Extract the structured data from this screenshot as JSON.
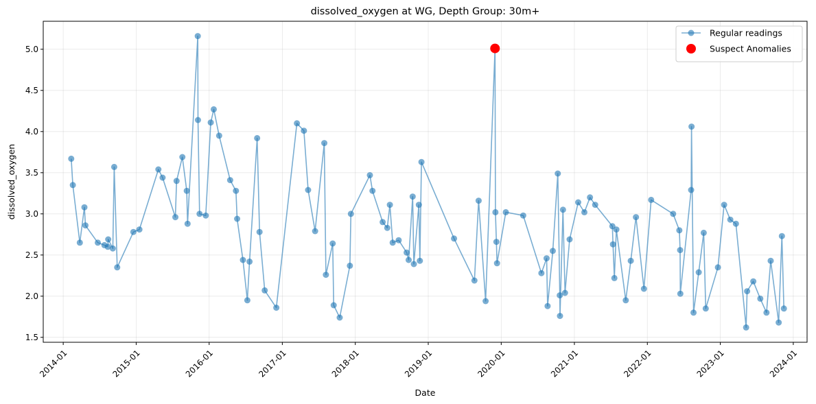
{
  "chart_data": {
    "type": "line",
    "title": "dissolved_oxygen at WG, Depth Group: 30m+",
    "xlabel": "Date",
    "ylabel": "dissolved_oxygen",
    "xlim": [
      "2013-09-23",
      "2024-03-10"
    ],
    "ylim": [
      1.44,
      5.34
    ],
    "x_ticks": [
      "2014-01-01",
      "2015-01-01",
      "2016-01-01",
      "2017-01-01",
      "2018-01-01",
      "2019-01-01",
      "2020-01-01",
      "2021-01-01",
      "2022-01-01",
      "2023-01-01",
      "2024-01-01"
    ],
    "x_tick_labels": [
      "2014-01",
      "2015-01",
      "2016-01",
      "2017-01",
      "2018-01",
      "2019-01",
      "2020-01",
      "2021-01",
      "2022-01",
      "2023-01",
      "2024-01"
    ],
    "y_ticks": [
      1.5,
      2.0,
      2.5,
      3.0,
      3.5,
      4.0,
      4.5,
      5.0
    ],
    "y_tick_labels": [
      "1.5",
      "2.0",
      "2.5",
      "3.0",
      "3.5",
      "4.0",
      "4.5",
      "5.0"
    ],
    "grid": true,
    "legend_position": "top-right",
    "series": [
      {
        "name": "Regular readings",
        "color": "#1f77b4",
        "style": "line-with-circle-markers",
        "points": [
          [
            "2014-02-10",
            3.67
          ],
          [
            "2014-02-18",
            3.35
          ],
          [
            "2014-03-25",
            2.65
          ],
          [
            "2014-04-17",
            3.08
          ],
          [
            "2014-04-22",
            2.86
          ],
          [
            "2014-06-23",
            2.65
          ],
          [
            "2014-07-26",
            2.62
          ],
          [
            "2014-08-12",
            2.6
          ],
          [
            "2014-08-14",
            2.69
          ],
          [
            "2014-09-06",
            2.58
          ],
          [
            "2014-09-13",
            3.57
          ],
          [
            "2014-09-28",
            2.35
          ],
          [
            "2014-12-18",
            2.78
          ],
          [
            "2015-01-17",
            2.81
          ],
          [
            "2015-04-22",
            3.54
          ],
          [
            "2015-05-13",
            3.44
          ],
          [
            "2015-07-16",
            2.96
          ],
          [
            "2015-07-22",
            3.4
          ],
          [
            "2015-08-20",
            3.69
          ],
          [
            "2015-09-11",
            3.28
          ],
          [
            "2015-09-15",
            2.88
          ],
          [
            "2015-11-05",
            5.16
          ],
          [
            "2015-11-06",
            4.14
          ],
          [
            "2015-11-14",
            3.0
          ],
          [
            "2015-12-15",
            2.98
          ],
          [
            "2016-01-09",
            4.11
          ],
          [
            "2016-01-24",
            4.27
          ],
          [
            "2016-02-20",
            3.95
          ],
          [
            "2016-04-15",
            3.41
          ],
          [
            "2016-05-14",
            3.28
          ],
          [
            "2016-05-20",
            2.94
          ],
          [
            "2016-06-18",
            2.44
          ],
          [
            "2016-07-10",
            1.95
          ],
          [
            "2016-07-21",
            2.42
          ],
          [
            "2016-08-28",
            3.92
          ],
          [
            "2016-09-09",
            2.78
          ],
          [
            "2016-10-05",
            2.07
          ],
          [
            "2016-12-02",
            1.86
          ],
          [
            "2017-03-15",
            4.1
          ],
          [
            "2017-04-19",
            4.01
          ],
          [
            "2017-05-10",
            3.29
          ],
          [
            "2017-06-14",
            2.79
          ],
          [
            "2017-07-30",
            3.86
          ],
          [
            "2017-08-07",
            2.26
          ],
          [
            "2017-09-10",
            2.64
          ],
          [
            "2017-09-15",
            1.89
          ],
          [
            "2017-10-15",
            1.74
          ],
          [
            "2017-12-05",
            2.37
          ],
          [
            "2017-12-10",
            3.0
          ],
          [
            "2018-03-15",
            3.47
          ],
          [
            "2018-03-28",
            3.28
          ],
          [
            "2018-05-18",
            2.9
          ],
          [
            "2018-06-10",
            2.83
          ],
          [
            "2018-06-23",
            3.11
          ],
          [
            "2018-07-07",
            2.65
          ],
          [
            "2018-08-06",
            2.68
          ],
          [
            "2018-09-15",
            2.53
          ],
          [
            "2018-09-25",
            2.44
          ],
          [
            "2018-10-15",
            3.21
          ],
          [
            "2018-10-21",
            2.39
          ],
          [
            "2018-11-15",
            3.11
          ],
          [
            "2018-11-20",
            2.43
          ],
          [
            "2018-11-28",
            3.63
          ],
          [
            "2019-05-10",
            2.7
          ],
          [
            "2019-08-20",
            2.19
          ],
          [
            "2019-09-10",
            3.16
          ],
          [
            "2019-10-15",
            1.94
          ],
          [
            "2019-12-01",
            5.01
          ],
          [
            "2019-12-03",
            3.02
          ],
          [
            "2019-12-08",
            2.66
          ],
          [
            "2019-12-11",
            2.4
          ],
          [
            "2020-01-24",
            3.02
          ],
          [
            "2020-04-20",
            2.98
          ],
          [
            "2020-07-20",
            2.28
          ],
          [
            "2020-08-15",
            2.46
          ],
          [
            "2020-08-20",
            1.88
          ],
          [
            "2020-09-15",
            2.55
          ],
          [
            "2020-10-10",
            3.49
          ],
          [
            "2020-10-20",
            2.01
          ],
          [
            "2020-10-21",
            1.76
          ],
          [
            "2020-11-05",
            3.05
          ],
          [
            "2020-11-15",
            2.04
          ],
          [
            "2020-12-08",
            2.69
          ],
          [
            "2021-01-20",
            3.14
          ],
          [
            "2021-02-20",
            3.02
          ],
          [
            "2021-03-20",
            3.2
          ],
          [
            "2021-04-15",
            3.11
          ],
          [
            "2021-07-10",
            2.85
          ],
          [
            "2021-07-13",
            2.63
          ],
          [
            "2021-07-20",
            2.22
          ],
          [
            "2021-07-30",
            2.81
          ],
          [
            "2021-09-15",
            1.95
          ],
          [
            "2021-10-10",
            2.43
          ],
          [
            "2021-11-05",
            2.96
          ],
          [
            "2021-12-15",
            2.09
          ],
          [
            "2022-01-20",
            3.17
          ],
          [
            "2022-05-10",
            3.0
          ],
          [
            "2022-06-10",
            2.8
          ],
          [
            "2022-06-14",
            2.56
          ],
          [
            "2022-06-15",
            2.03
          ],
          [
            "2022-08-08",
            3.29
          ],
          [
            "2022-08-10",
            4.06
          ],
          [
            "2022-08-20",
            1.8
          ],
          [
            "2022-09-15",
            2.29
          ],
          [
            "2022-10-10",
            2.77
          ],
          [
            "2022-10-20",
            1.85
          ],
          [
            "2022-12-20",
            2.35
          ],
          [
            "2023-01-20",
            3.11
          ],
          [
            "2023-02-20",
            2.93
          ],
          [
            "2023-03-20",
            2.88
          ],
          [
            "2023-05-10",
            1.62
          ],
          [
            "2023-05-15",
            2.06
          ],
          [
            "2023-06-15",
            2.18
          ],
          [
            "2023-07-20",
            1.97
          ],
          [
            "2023-08-20",
            1.8
          ],
          [
            "2023-09-10",
            2.43
          ],
          [
            "2023-10-20",
            1.68
          ],
          [
            "2023-11-05",
            2.73
          ],
          [
            "2023-11-15",
            1.85
          ]
        ]
      },
      {
        "name": "Suspect Anomalies",
        "color": "#ff0000",
        "style": "large-circle-markers",
        "points": [
          [
            "2019-12-01",
            5.01
          ]
        ]
      }
    ]
  }
}
